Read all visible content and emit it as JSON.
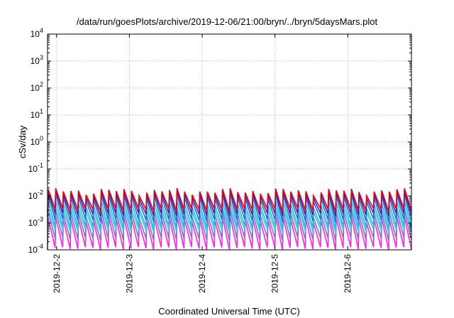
{
  "chart_data": {
    "type": "line",
    "title": "/data/run/goesPlots/archive/2019-12-06/21:00/bryn/../bryn/5daysMars.plot",
    "xlabel": "Coordinated Universal Time (UTC)",
    "ylabel": "cSv/day",
    "y_scale": "log",
    "ylim": [
      0.0001,
      10000
    ],
    "y_tick_labels": [
      {
        "value": 0.0001,
        "base": "10",
        "exp": "-4"
      },
      {
        "value": 0.001,
        "base": "10",
        "exp": "-3"
      },
      {
        "value": 0.01,
        "base": "10",
        "exp": "-2"
      },
      {
        "value": 0.1,
        "base": "10",
        "exp": "-1"
      },
      {
        "value": 1,
        "base": "10",
        "exp": "0"
      },
      {
        "value": 10,
        "base": "10",
        "exp": "1"
      },
      {
        "value": 100,
        "base": "10",
        "exp": "2"
      },
      {
        "value": 1000,
        "base": "10",
        "exp": "3"
      },
      {
        "value": 10000,
        "base": "10",
        "exp": "4"
      }
    ],
    "xlim": [
      "2019-12-01T21:00",
      "2019-12-06T21:00"
    ],
    "x_ticks": [
      "2019-12-2",
      "2019-12-3",
      "2019-12-4",
      "2019-12-5",
      "2019-12-6"
    ],
    "x_tick_times": [
      "2019-12-02T00:00",
      "2019-12-03T00:00",
      "2019-12-04T00:00",
      "2019-12-05T00:00",
      "2019-12-06T00:00"
    ],
    "grid": true,
    "cycle_hours": 2.5,
    "series": [
      {
        "color": "#e8000b",
        "peak_low": 0.01,
        "peak_high": 0.02,
        "trough": 0.003
      },
      {
        "color": "#3a22b8",
        "peak_low": 0.008,
        "peak_high": 0.016,
        "trough": 0.002
      },
      {
        "color": "#1f6fe8",
        "peak_low": 0.006,
        "peak_high": 0.012,
        "trough": 0.0012
      },
      {
        "color": "#28b8e8",
        "peak_low": 0.0035,
        "peak_high": 0.007,
        "trough": 0.0007
      },
      {
        "color": "#2ad6c8",
        "peak_low": 0.0025,
        "peak_high": 0.004,
        "trough": 0.0005
      },
      {
        "color": "#8a6ad8",
        "peak_low": 0.0015,
        "peak_high": 0.003,
        "trough": 0.00025
      },
      {
        "color": "#ff22e8",
        "peak_low": 0.001,
        "peak_high": 0.0018,
        "trough": 0.00011
      }
    ]
  }
}
